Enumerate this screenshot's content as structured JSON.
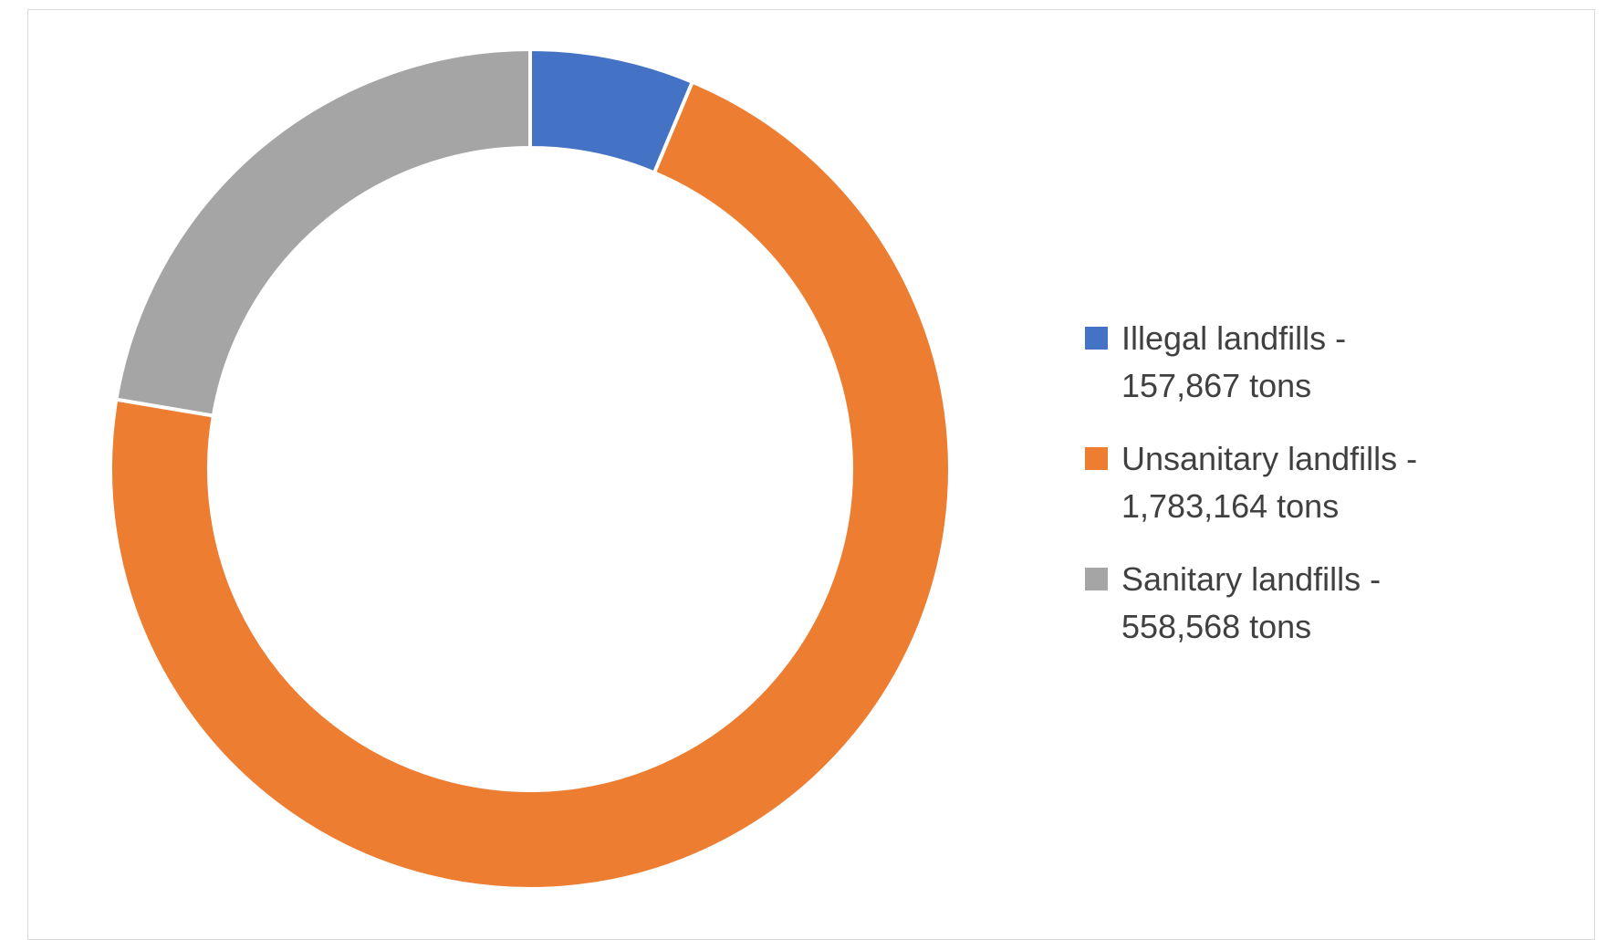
{
  "chart_data": {
    "type": "pie",
    "variant": "donut",
    "title": "",
    "start_angle_deg": 0,
    "slice_separator_color": "#ffffff",
    "series": [
      {
        "name": "Illegal landfills",
        "value": 157867,
        "color": "#4472C4"
      },
      {
        "name": "Unsanitary landfills",
        "value": 1783164,
        "color": "#ED7D31"
      },
      {
        "name": "Sanitary landfills",
        "value": 558568,
        "color": "#A5A5A5"
      }
    ],
    "legend": {
      "position": "right",
      "entries": [
        "Illegal landfills -\n157,867 tons",
        "Unsanitary landfills -\n1,783,164 tons",
        "Sanitary landfills -\n558,568 tons"
      ]
    }
  }
}
